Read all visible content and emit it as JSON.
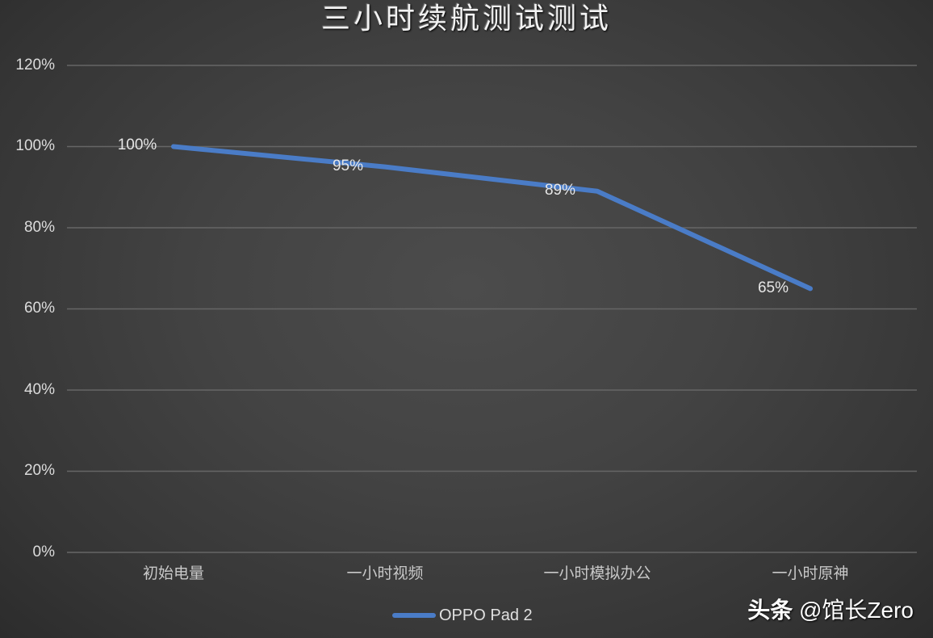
{
  "chart_data": {
    "type": "line",
    "title": "三小时续航测试测试",
    "xlabel": "",
    "ylabel": "",
    "categories": [
      "初始电量",
      "一小时视频",
      "一小时模拟办公",
      "一小时原神"
    ],
    "series": [
      {
        "name": "OPPO Pad 2",
        "values": [
          100,
          95,
          89,
          65
        ],
        "data_labels": [
          "100%",
          "95%",
          "89%",
          "65%"
        ],
        "color": "#4a7cc7"
      }
    ],
    "ylim": [
      0,
      120
    ],
    "yticks": [
      "0%",
      "20%",
      "40%",
      "60%",
      "80%",
      "100%",
      "120%"
    ],
    "grid": true,
    "legend_position": "bottom"
  },
  "title": "三小时续航测试测试",
  "axis": {
    "yticks": [
      {
        "label": "120%",
        "value": 120
      },
      {
        "label": "100%",
        "value": 100
      },
      {
        "label": "80%",
        "value": 80
      },
      {
        "label": "60%",
        "value": 60
      },
      {
        "label": "40%",
        "value": 40
      },
      {
        "label": "20%",
        "value": 20
      },
      {
        "label": "0%",
        "value": 0
      }
    ],
    "xticks": [
      "初始电量",
      "一小时视频",
      "一小时模拟办公",
      "一小时原神"
    ]
  },
  "data_labels": [
    "100%",
    "95%",
    "89%",
    "65%"
  ],
  "legend": {
    "label": "OPPO Pad 2",
    "color": "#4a7cc7"
  },
  "watermark": {
    "prefix": "头条",
    "handle": " @馆长Zero"
  },
  "colors": {
    "line": "#4a7cc7",
    "grid": "#666666",
    "text": "#dcdcdc"
  }
}
